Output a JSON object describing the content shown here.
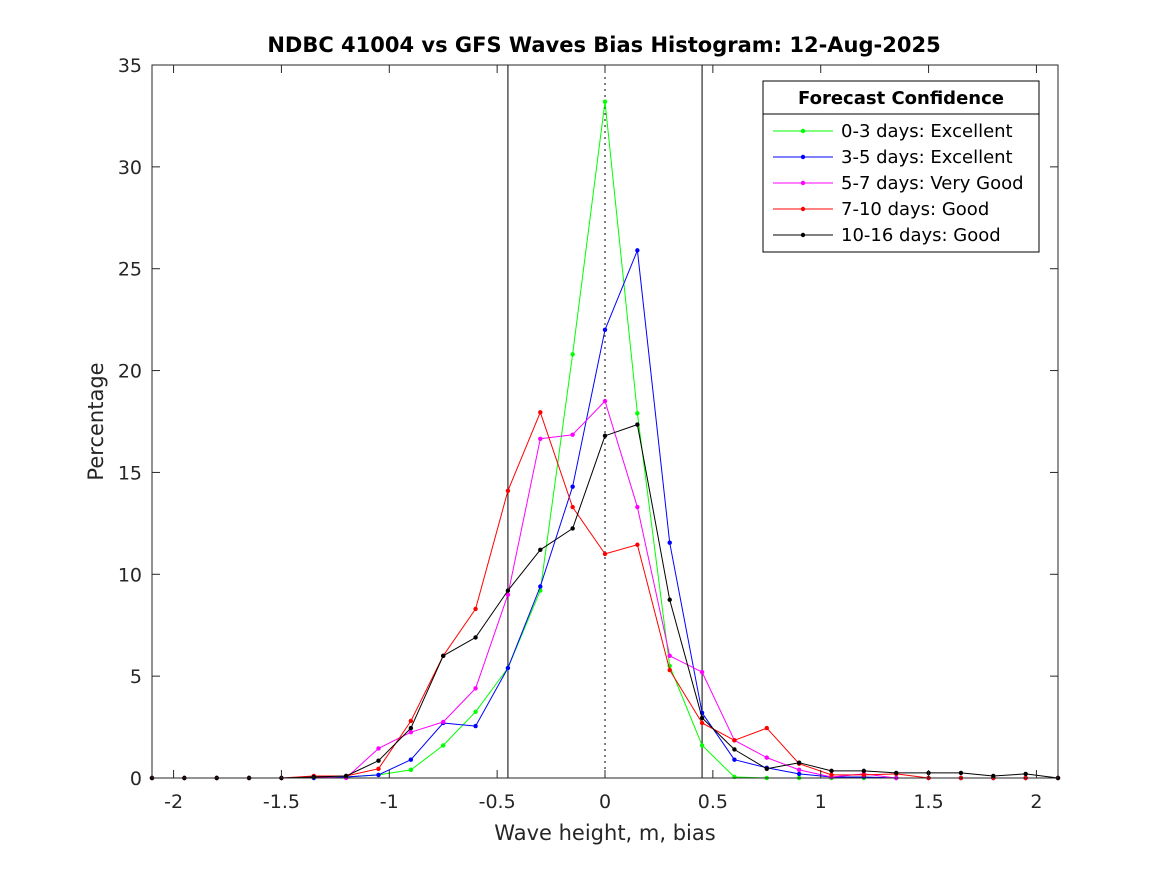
{
  "chart_data": {
    "type": "line",
    "title": "NDBC 41004 vs GFS Waves Bias Histogram: 12-Aug-2025",
    "xlabel": "Wave height, m, bias",
    "ylabel": "Percentage",
    "xlim": [
      -2.1,
      2.1
    ],
    "ylim": [
      0,
      35
    ],
    "xticks": [
      -2,
      -1.5,
      -1,
      -0.5,
      0,
      0.5,
      1,
      1.5,
      2
    ],
    "xtick_labels": [
      "-2",
      "-1.5",
      "-1",
      "-0.5",
      "0",
      "0.5",
      "1",
      "1.5",
      "2"
    ],
    "yticks": [
      0,
      5,
      10,
      15,
      20,
      25,
      30,
      35
    ],
    "ytick_labels": [
      "0",
      "5",
      "10",
      "15",
      "20",
      "25",
      "30",
      "35"
    ],
    "grid": false,
    "reference_lines": {
      "solid_x": [
        -0.45,
        0.45
      ],
      "dotted_x": [
        0
      ]
    },
    "legend": {
      "title": "Forecast Confidence",
      "placement": "top-right"
    },
    "x": [
      -2.1,
      -1.95,
      -1.8,
      -1.65,
      -1.5,
      -1.35,
      -1.2,
      -1.05,
      -0.9,
      -0.75,
      -0.6,
      -0.45,
      -0.3,
      -0.15,
      0,
      0.15,
      0.3,
      0.45,
      0.6,
      0.75,
      0.9,
      1.05,
      1.2,
      1.35,
      1.5,
      1.65,
      1.8,
      1.95,
      2.1
    ],
    "series": [
      {
        "name": "0-3 days: Excellent",
        "color": "#00ff00",
        "values": [
          0,
          0,
          0,
          0,
          0,
          0,
          0.05,
          0.15,
          0.4,
          1.6,
          3.25,
          5.4,
          9.2,
          20.8,
          33.2,
          17.9,
          5.5,
          1.6,
          0.05,
          0,
          0,
          0,
          0,
          0,
          0,
          0,
          0,
          0,
          0
        ]
      },
      {
        "name": "3-5 days: Excellent",
        "color": "#0000ff",
        "values": [
          0,
          0,
          0,
          0,
          0,
          0,
          0.05,
          0.15,
          0.9,
          2.7,
          2.55,
          5.4,
          9.4,
          14.3,
          22.0,
          25.9,
          11.55,
          3.2,
          0.9,
          0.5,
          0.2,
          0.05,
          0.05,
          0,
          0,
          0,
          0,
          0,
          0
        ]
      },
      {
        "name": "5-7 days: Very Good",
        "color": "#ff00ff",
        "values": [
          0,
          0,
          0,
          0,
          0,
          0.05,
          0.0,
          1.45,
          2.25,
          2.75,
          4.4,
          9.0,
          16.65,
          16.85,
          18.5,
          13.3,
          6.0,
          5.2,
          1.85,
          1.0,
          0.4,
          0.05,
          0.2,
          0,
          0,
          0,
          0,
          0,
          0
        ]
      },
      {
        "name": "7-10 days: Good",
        "color": "#ff0000",
        "values": [
          0,
          0,
          0,
          0,
          0,
          0.1,
          0.1,
          0.45,
          2.8,
          6.0,
          8.3,
          14.1,
          17.95,
          13.3,
          11.0,
          11.45,
          5.3,
          2.7,
          1.85,
          2.45,
          0.7,
          0.15,
          0.15,
          0.2,
          0,
          0,
          0,
          0,
          0
        ]
      },
      {
        "name": "10-16 days: Good",
        "color": "#000000",
        "values": [
          0,
          0,
          0,
          0,
          0,
          0.05,
          0.1,
          0.85,
          2.45,
          6.0,
          6.9,
          9.2,
          11.2,
          12.25,
          16.8,
          17.35,
          8.75,
          2.95,
          1.4,
          0.45,
          0.75,
          0.35,
          0.35,
          0.25,
          0.25,
          0.25,
          0.1,
          0.2,
          0
        ]
      }
    ]
  }
}
